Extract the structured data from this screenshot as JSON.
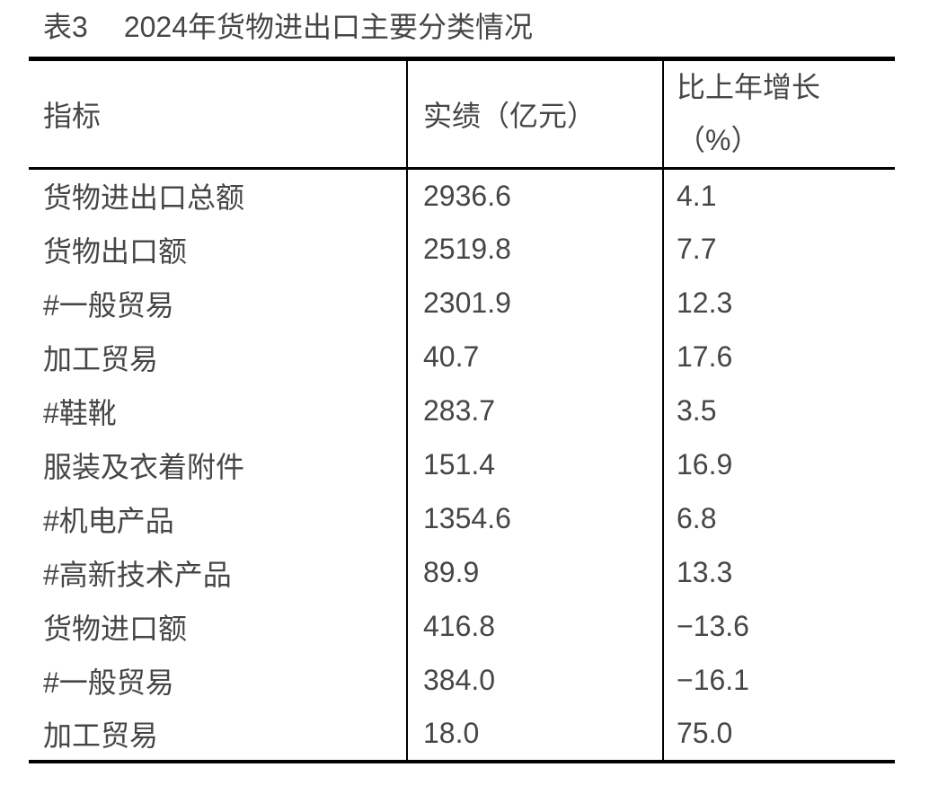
{
  "title": {
    "prefix": "表3",
    "text": "2024年货物进出口主要分类情况"
  },
  "table": {
    "columns": [
      {
        "label": "指标"
      },
      {
        "label": "实绩（亿元）"
      },
      {
        "label_line1": "比上年增长",
        "label_line2": "（%）"
      }
    ],
    "rows": [
      {
        "indicator": "货物进出口总额",
        "value": "2936.6",
        "growth": "4.1"
      },
      {
        "indicator": "货物出口额",
        "value": "2519.8",
        "growth": "7.7"
      },
      {
        "indicator": "#一般贸易",
        "value": "2301.9",
        "growth": "12.3"
      },
      {
        "indicator": "加工贸易",
        "value": "40.7",
        "growth": "17.6"
      },
      {
        "indicator": "#鞋靴",
        "value": "283.7",
        "growth": "3.5"
      },
      {
        "indicator": "服装及衣着附件",
        "value": "151.4",
        "growth": "16.9"
      },
      {
        "indicator": "#机电产品",
        "value": "1354.6",
        "growth": "6.8"
      },
      {
        "indicator": "#高新技术产品",
        "value": "89.9",
        "growth": "13.3"
      },
      {
        "indicator": "货物进口额",
        "value": "416.8",
        "growth": "−13.6"
      },
      {
        "indicator": "#一般贸易",
        "value": "384.0",
        "growth": "−16.1"
      },
      {
        "indicator": "加工贸易",
        "value": "18.0",
        "growth": "75.0"
      }
    ]
  },
  "colors": {
    "text": "#464646",
    "rule": "#000000",
    "background": "#ffffff"
  }
}
